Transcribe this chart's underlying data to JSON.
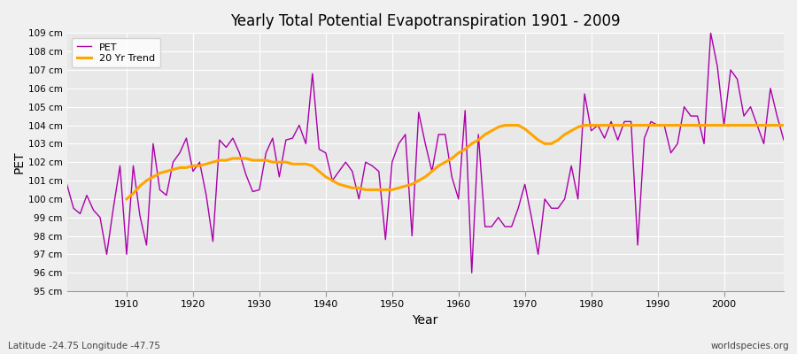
{
  "title": "Yearly Total Potential Evapotranspiration 1901 - 2009",
  "xlabel": "Year",
  "ylabel": "PET",
  "lat_lon_label": "Latitude -24.75 Longitude -47.75",
  "watermark": "worldspecies.org",
  "pet_color": "#aa00aa",
  "trend_color": "#FFA500",
  "fig_bg_color": "#f0f0f0",
  "ax_bg_color": "#e8e8e8",
  "grid_color": "#ffffff",
  "ylim": [
    95,
    109
  ],
  "xlim": [
    1901,
    2009
  ],
  "ytick_labels": [
    "95 cm",
    "96 cm",
    "97 cm",
    "98 cm",
    "99 cm",
    "100 cm",
    "101 cm",
    "102 cm",
    "103 cm",
    "104 cm",
    "105 cm",
    "106 cm",
    "107 cm",
    "108 cm",
    "109 cm"
  ],
  "xtick_positions": [
    1910,
    1920,
    1930,
    1940,
    1950,
    1960,
    1970,
    1980,
    1990,
    2000
  ],
  "years": [
    1901,
    1902,
    1903,
    1904,
    1905,
    1906,
    1907,
    1908,
    1909,
    1910,
    1911,
    1912,
    1913,
    1914,
    1915,
    1916,
    1917,
    1918,
    1919,
    1920,
    1921,
    1922,
    1923,
    1924,
    1925,
    1926,
    1927,
    1928,
    1929,
    1930,
    1931,
    1932,
    1933,
    1934,
    1935,
    1936,
    1937,
    1938,
    1939,
    1940,
    1941,
    1942,
    1943,
    1944,
    1945,
    1946,
    1947,
    1948,
    1949,
    1950,
    1951,
    1952,
    1953,
    1954,
    1955,
    1956,
    1957,
    1958,
    1959,
    1960,
    1961,
    1962,
    1963,
    1964,
    1965,
    1966,
    1967,
    1968,
    1969,
    1970,
    1971,
    1972,
    1973,
    1974,
    1975,
    1976,
    1977,
    1978,
    1979,
    1980,
    1981,
    1982,
    1983,
    1984,
    1985,
    1986,
    1987,
    1988,
    1989,
    1990,
    1991,
    1992,
    1993,
    1994,
    1995,
    1996,
    1997,
    1998,
    1999,
    2000,
    2001,
    2002,
    2003,
    2004,
    2005,
    2006,
    2007,
    2008,
    2009
  ],
  "pet_values": [
    100.8,
    99.5,
    99.2,
    100.2,
    99.4,
    99.0,
    97.0,
    99.5,
    101.8,
    97.0,
    101.8,
    99.1,
    97.5,
    103.0,
    100.5,
    100.2,
    102.0,
    102.5,
    103.3,
    101.5,
    102.0,
    100.2,
    97.7,
    103.2,
    102.8,
    103.3,
    102.5,
    101.3,
    100.4,
    100.5,
    102.5,
    103.3,
    101.2,
    103.2,
    103.3,
    104.0,
    103.0,
    106.8,
    102.7,
    102.5,
    101.0,
    101.5,
    102.0,
    101.5,
    100.0,
    102.0,
    101.8,
    101.5,
    97.8,
    102.0,
    103.0,
    103.5,
    98.0,
    104.7,
    103.0,
    101.5,
    103.5,
    103.5,
    101.2,
    100.0,
    104.8,
    96.0,
    103.5,
    98.5,
    98.5,
    99.0,
    98.5,
    98.5,
    99.5,
    100.8,
    99.0,
    97.0,
    100.0,
    99.5,
    99.5,
    100.0,
    101.8,
    100.0,
    105.7,
    103.7,
    104.0,
    103.3,
    104.2,
    103.2,
    104.2,
    104.2,
    97.5,
    103.3,
    104.2,
    104.0,
    104.0,
    102.5,
    103.0,
    105.0,
    104.5,
    104.5,
    103.0,
    109.0,
    107.2,
    104.0,
    107.0,
    106.5,
    104.5,
    105.0,
    104.0,
    103.0,
    106.0,
    104.5,
    103.2
  ],
  "trend_start_year": 1910,
  "trend_values": [
    100.0,
    100.3,
    100.7,
    101.0,
    101.2,
    101.4,
    101.5,
    101.6,
    101.7,
    101.7,
    101.8,
    101.8,
    101.9,
    102.0,
    102.1,
    102.1,
    102.2,
    102.2,
    102.2,
    102.1,
    102.1,
    102.1,
    102.0,
    102.0,
    102.0,
    101.9,
    101.9,
    101.9,
    101.8,
    101.5,
    101.2,
    101.0,
    100.8,
    100.7,
    100.6,
    100.6,
    100.5,
    100.5,
    100.5,
    100.5,
    100.5,
    100.6,
    100.7,
    100.8,
    101.0,
    101.2,
    101.5,
    101.8,
    102.0,
    102.2,
    102.5,
    102.7,
    103.0,
    103.2,
    103.5,
    103.7,
    103.9,
    104.0,
    104.0,
    104.0,
    103.8,
    103.5,
    103.2,
    103.0,
    103.0,
    103.2,
    103.5,
    103.7,
    103.9,
    104.0,
    104.0,
    104.0,
    104.0,
    104.0,
    104.0,
    104.0,
    104.0,
    104.0,
    104.0,
    104.0,
    104.0,
    104.0,
    104.0,
    104.0,
    104.0,
    104.0,
    104.0,
    104.0,
    104.0,
    104.0,
    104.0,
    104.0,
    104.0,
    104.0,
    104.0,
    104.0,
    104.0,
    104.0,
    104.0,
    104.0
  ]
}
